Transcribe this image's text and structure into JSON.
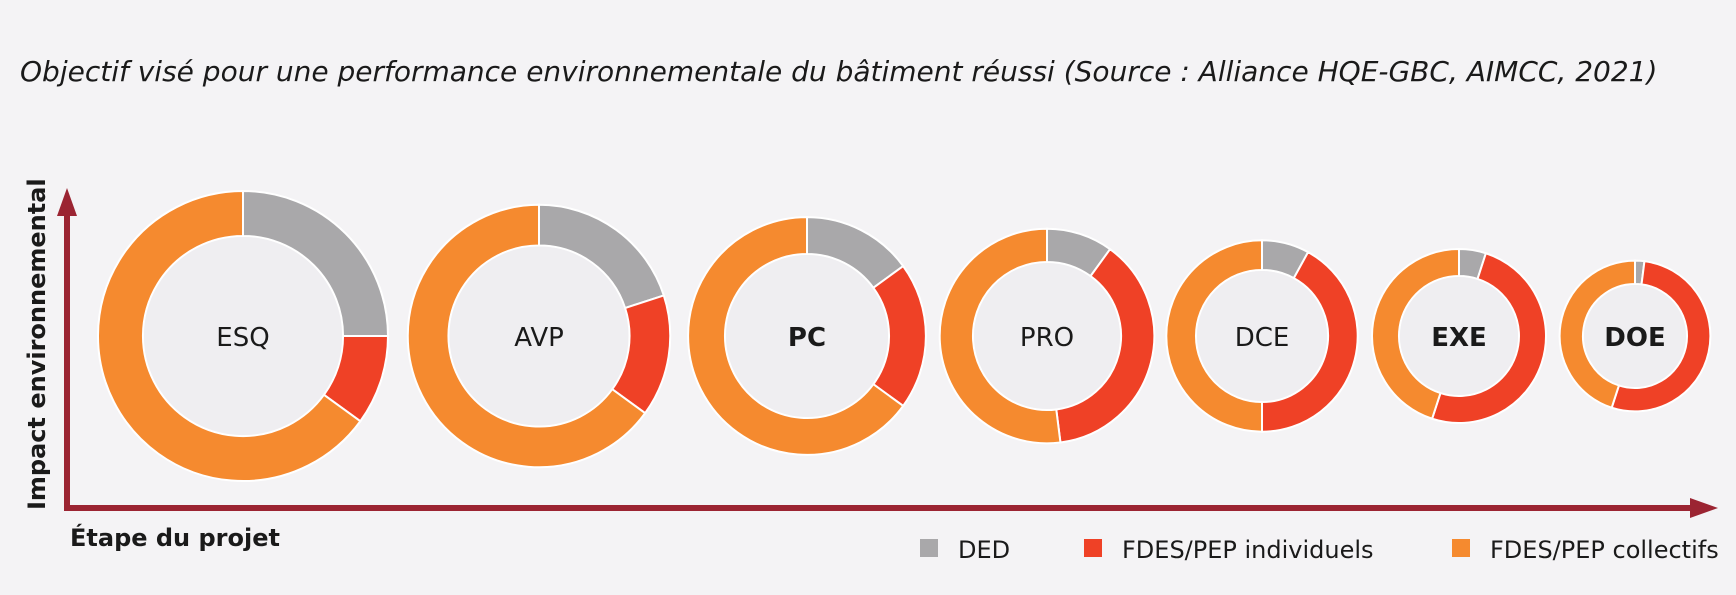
{
  "title": "Objectif visé pour une performance environnementale du bâtiment réussi (Source : Alliance HQE-GBC, AIMCC, 2021)",
  "chart_data": {
    "type": "donut",
    "ylabel": "Impact environnemental",
    "xlabel": "Étape du projet",
    "legend_position": "bottom-right",
    "grid": false,
    "colors": {
      "DED": "#a9a8aa",
      "FDES/PEP individuels": "#ef4126",
      "FDES/PEP collectifs": "#f58a2f",
      "axis": "#9b2432",
      "center": "#efeef1"
    },
    "series_names": [
      "DED",
      "FDES/PEP individuels",
      "FDES/PEP collectifs"
    ],
    "categories": [
      "ESQ",
      "AVP",
      "PC",
      "PRO",
      "DCE",
      "EXE",
      "DOE"
    ],
    "bold_categories": [
      "PC",
      "EXE",
      "DOE"
    ],
    "relative_size": [
      1.0,
      0.905,
      0.82,
      0.74,
      0.66,
      0.6,
      0.52
    ],
    "values": {
      "DED": [
        25,
        20,
        15,
        10,
        8,
        5,
        2
      ],
      "FDES/PEP individuels": [
        10,
        15,
        20,
        38,
        42,
        50,
        53
      ],
      "FDES/PEP collectifs": [
        65,
        65,
        65,
        52,
        50,
        45,
        45
      ]
    }
  }
}
